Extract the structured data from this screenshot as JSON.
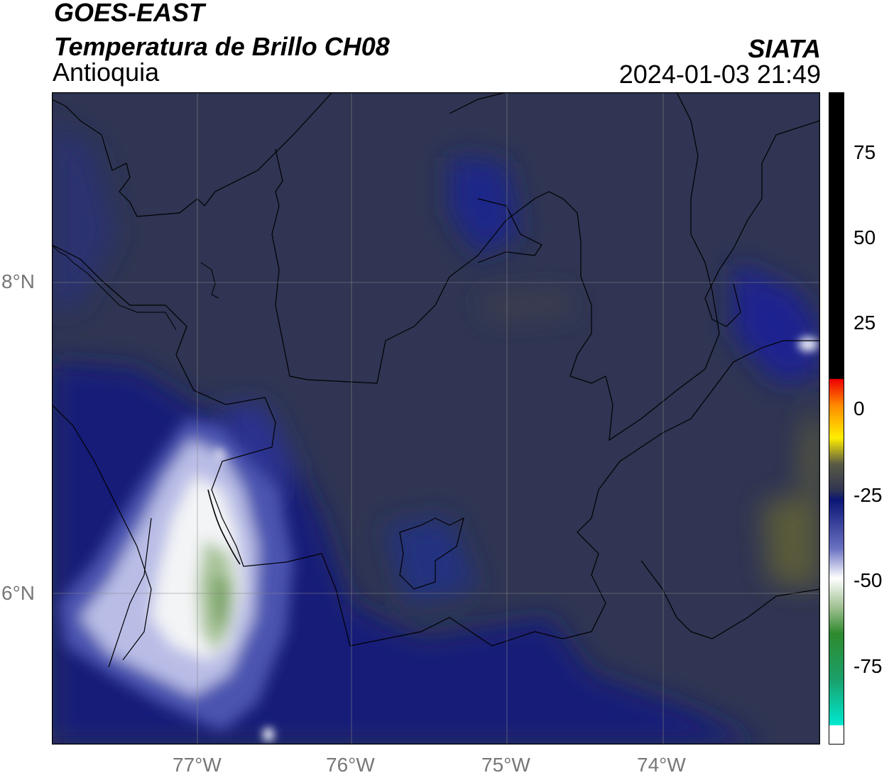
{
  "header": {
    "satellite": "GOES-EAST",
    "product": "Temperatura de Brillo CH08",
    "region": "Antioquia",
    "agency": "SIATA",
    "datetime": "2024-01-03 21:49"
  },
  "map": {
    "lon_ticks": [
      "77°W",
      "76°W",
      "75°W",
      "74°W"
    ],
    "lat_ticks": [
      "8°N",
      "6°N"
    ],
    "colors": {
      "background": "#2f3552",
      "cold_cloud": "#ffffff",
      "green_core": "#7aa467",
      "boundary": "#000000",
      "grid": "#888888"
    }
  },
  "colorbar": {
    "labels": [
      "75",
      "50",
      "25",
      "0",
      "-25",
      "-50",
      "-75"
    ]
  }
}
